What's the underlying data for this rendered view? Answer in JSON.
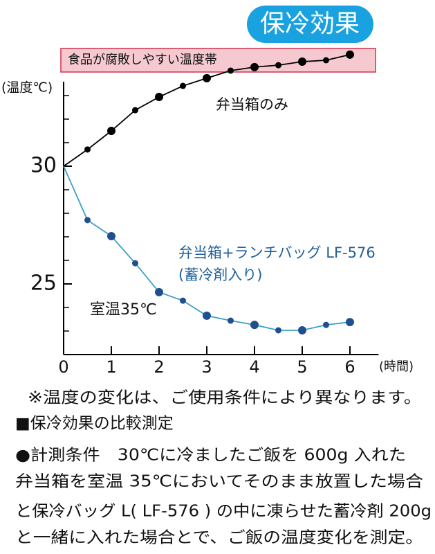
{
  "chart_data": {
    "type": "line",
    "title": "保冷効果",
    "band": {
      "label": "食品が腐敗しやすい温度帯",
      "range": [
        34,
        35
      ]
    },
    "y_label": "(温度℃)",
    "x_label": "(時間)",
    "annotation": "室温35℃",
    "x": [
      0,
      0.5,
      1,
      1.5,
      2,
      2.5,
      3,
      3.5,
      4,
      4.5,
      5,
      5.5,
      6
    ],
    "series": [
      {
        "name": "弁当箱のみ",
        "color": "#000000",
        "marker_color": "#000000",
        "values": [
          30,
          30.71,
          31.5,
          32.38,
          32.94,
          33.41,
          33.74,
          34.06,
          34.21,
          34.29,
          34.44,
          34.5,
          34.74
        ]
      },
      {
        "name": "弁当箱+ランチバッグ LF-576",
        "name_note": "(蓄冷剤入り)",
        "color": "#3aa0c8",
        "marker_color": "#1f4f8f",
        "values": [
          30,
          27.71,
          27.03,
          25.88,
          24.65,
          24.29,
          23.65,
          23.44,
          23.26,
          23.03,
          23.03,
          23.26,
          23.38
        ]
      }
    ],
    "xlim": [
      0,
      6.6
    ],
    "xticks": [
      0,
      1,
      2,
      3,
      4,
      5,
      6
    ],
    "ylim": [
      22,
      35
    ],
    "yticks": [
      25,
      30
    ],
    "yminorticks": [
      23,
      24,
      26,
      27,
      28,
      29,
      31,
      32,
      33
    ]
  },
  "notes": {
    "disclaimer": "※温度の変化は、ご使用条件により異なります。",
    "heading": "■保冷効果の比較測定",
    "lines": [
      "●計測条件　30℃に冷ましたご飯を 600g 入れた",
      "弁当箱を室温 35℃においてそのまま放置した場合",
      "と保冷バッグ L( LF-576 ) の中に凍らせた蓄冷剤 200g",
      "と一緒に入れた場合とで、ご飯の温度変化を測定。"
    ]
  }
}
